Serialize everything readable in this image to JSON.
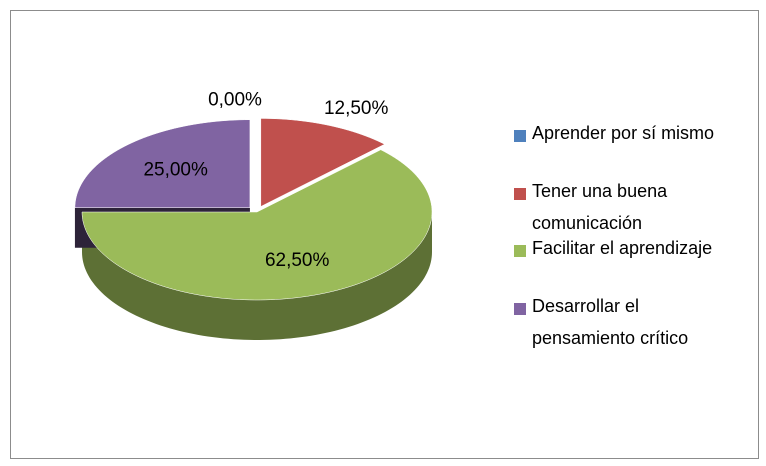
{
  "chart_data": {
    "type": "pie",
    "categories": [
      "Aprender por sí mismo",
      "Tener una buena comunicación",
      "Facilitar el aprendizaje",
      "Desarrollar el pensamiento crítico"
    ],
    "values": [
      0,
      12.5,
      62.5,
      25
    ],
    "value_labels": [
      "0,00%",
      "12,50%",
      "62,50%",
      "25,00%"
    ],
    "colors": [
      "#4f81bd",
      "#c0504d",
      "#9bbb59",
      "#8064a2"
    ],
    "legend": "right"
  }
}
